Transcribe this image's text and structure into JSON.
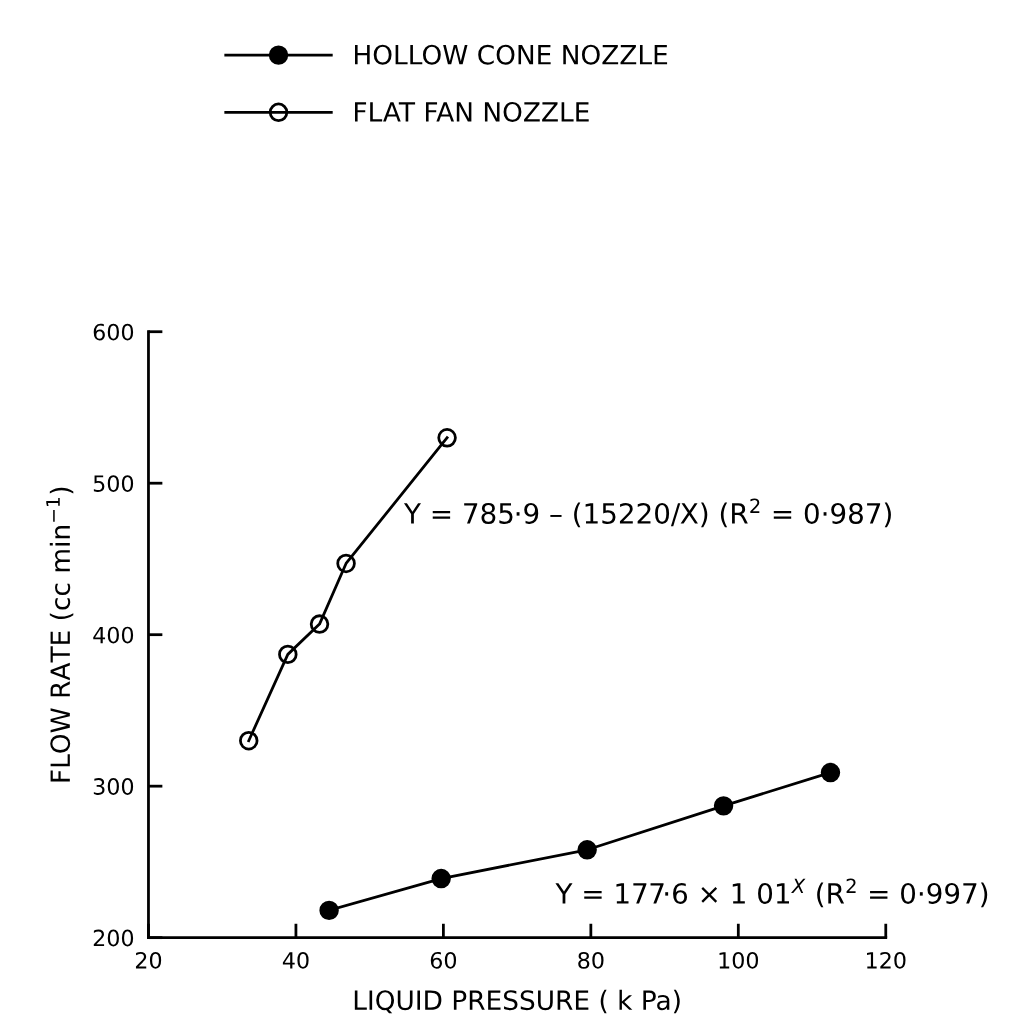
{
  "chart_data": {
    "type": "line",
    "xlabel": "LIQUID PRESSURE ( k Pa)",
    "ylabel": "FLOW RATE (cc min$^{−1}$)",
    "xlim": [
      20,
      120
    ],
    "xticks": [
      20,
      40,
      60,
      80,
      100,
      120
    ],
    "ylim": [
      200,
      600
    ],
    "yticks": [
      200,
      300,
      400,
      500,
      600
    ],
    "grid": false,
    "legend": "top",
    "marker": "circle",
    "line_style": "solid",
    "series": [
      {
        "name": "HOLLOW CONE NOZZLE",
        "color": "#000000",
        "x": [
          44.5,
          59.7,
          79.5,
          98,
          112.5
        ],
        "values": [
          218,
          239,
          258,
          287,
          309
        ]
      },
      {
        "name": "FLAT FAN NOZZLE",
        "color": "#000000",
        "x": [
          33.6,
          38.9,
          43.2,
          46.8,
          60.5
        ],
        "values": [
          330,
          387,
          407,
          447,
          530
        ]
      }
    ],
    "annotations": [
      "Y = 785·9 – (15220/X) (R$^{2}$ = 0·987)",
      "Y = 177·6 × 1 01$^{X}$ (R$^{2}$ = 0·997)"
    ]
  }
}
